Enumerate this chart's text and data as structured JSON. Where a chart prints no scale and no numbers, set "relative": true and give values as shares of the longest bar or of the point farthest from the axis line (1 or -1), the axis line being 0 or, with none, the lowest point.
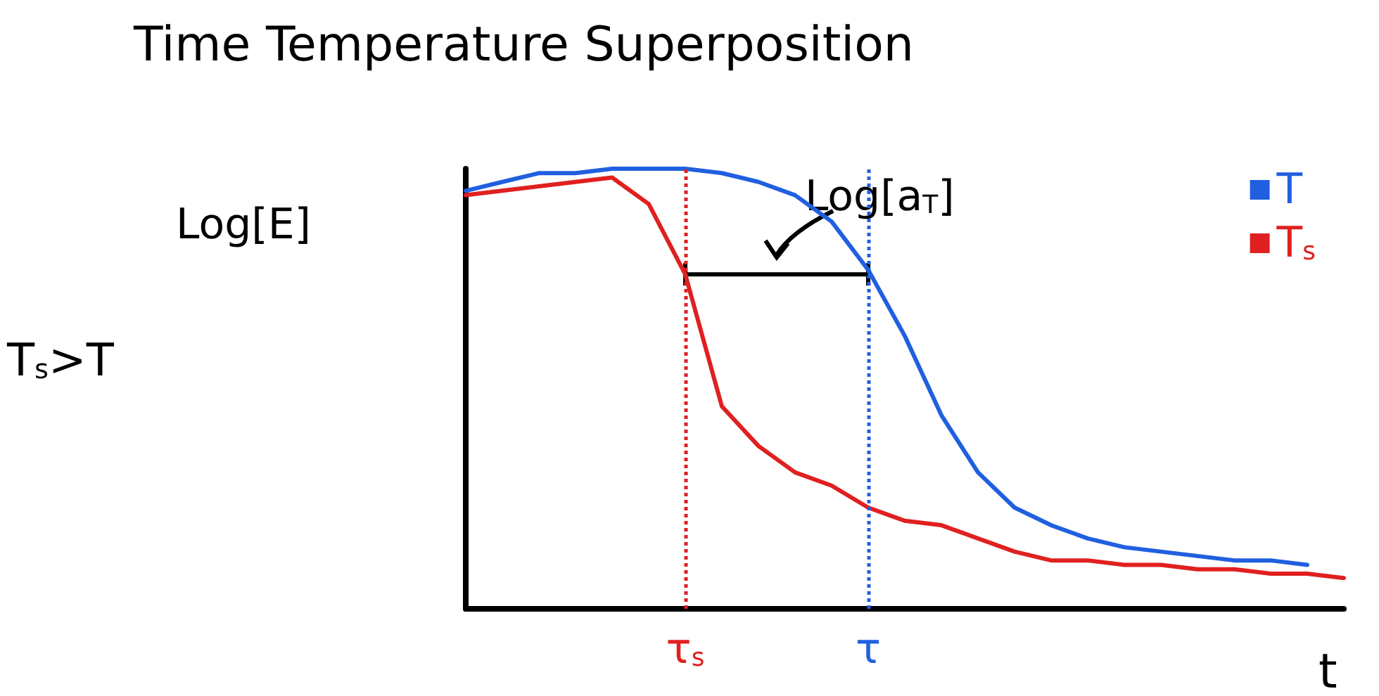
{
  "chart_data": {
    "type": "line",
    "title": "Time Temperature Superposition",
    "ylabel": "Log[E]",
    "xlabel": "t",
    "relative": true,
    "categories": [
      null,
      null,
      null,
      null,
      null,
      null,
      "τ$_{s}$",
      null,
      null,
      null,
      null,
      "τ",
      null,
      null,
      null,
      null,
      null,
      null,
      null,
      null,
      null,
      null,
      null,
      null,
      null
    ],
    "series": [
      {
        "name": "T",
        "color": "#2060e0",
        "values": [
          0.95,
          0.97,
          0.99,
          0.99,
          1.0,
          1.0,
          1.0,
          0.99,
          0.97,
          0.94,
          0.88,
          0.77,
          0.62,
          0.44,
          0.31,
          0.23,
          0.19,
          0.16,
          0.14,
          0.13,
          0.12,
          0.11,
          0.11,
          0.1,
          null
        ]
      },
      {
        "name": "T$_{s}$",
        "color": "#e02020",
        "values": [
          0.94,
          0.95,
          0.96,
          0.97,
          0.98,
          0.92,
          0.76,
          0.46,
          0.37,
          0.31,
          0.28,
          0.23,
          0.2,
          0.19,
          0.16,
          0.13,
          0.11,
          0.11,
          0.1,
          0.1,
          0.09,
          0.09,
          0.08,
          0.08,
          0.07
        ]
      }
    ],
    "ref_lines": [
      {
        "axis": "x",
        "value": "τ$_{s}$",
        "color": "#e02020",
        "line_style": "dotted"
      },
      {
        "axis": "x",
        "value": "τ",
        "color": "#2060e0",
        "line_style": "dotted"
      }
    ],
    "annotations": [
      "Log[a$_{T}$]",
      "T$_{s}$>T"
    ],
    "legend": "top right",
    "grid": false,
    "marker": "none",
    "line_style": "solid"
  }
}
